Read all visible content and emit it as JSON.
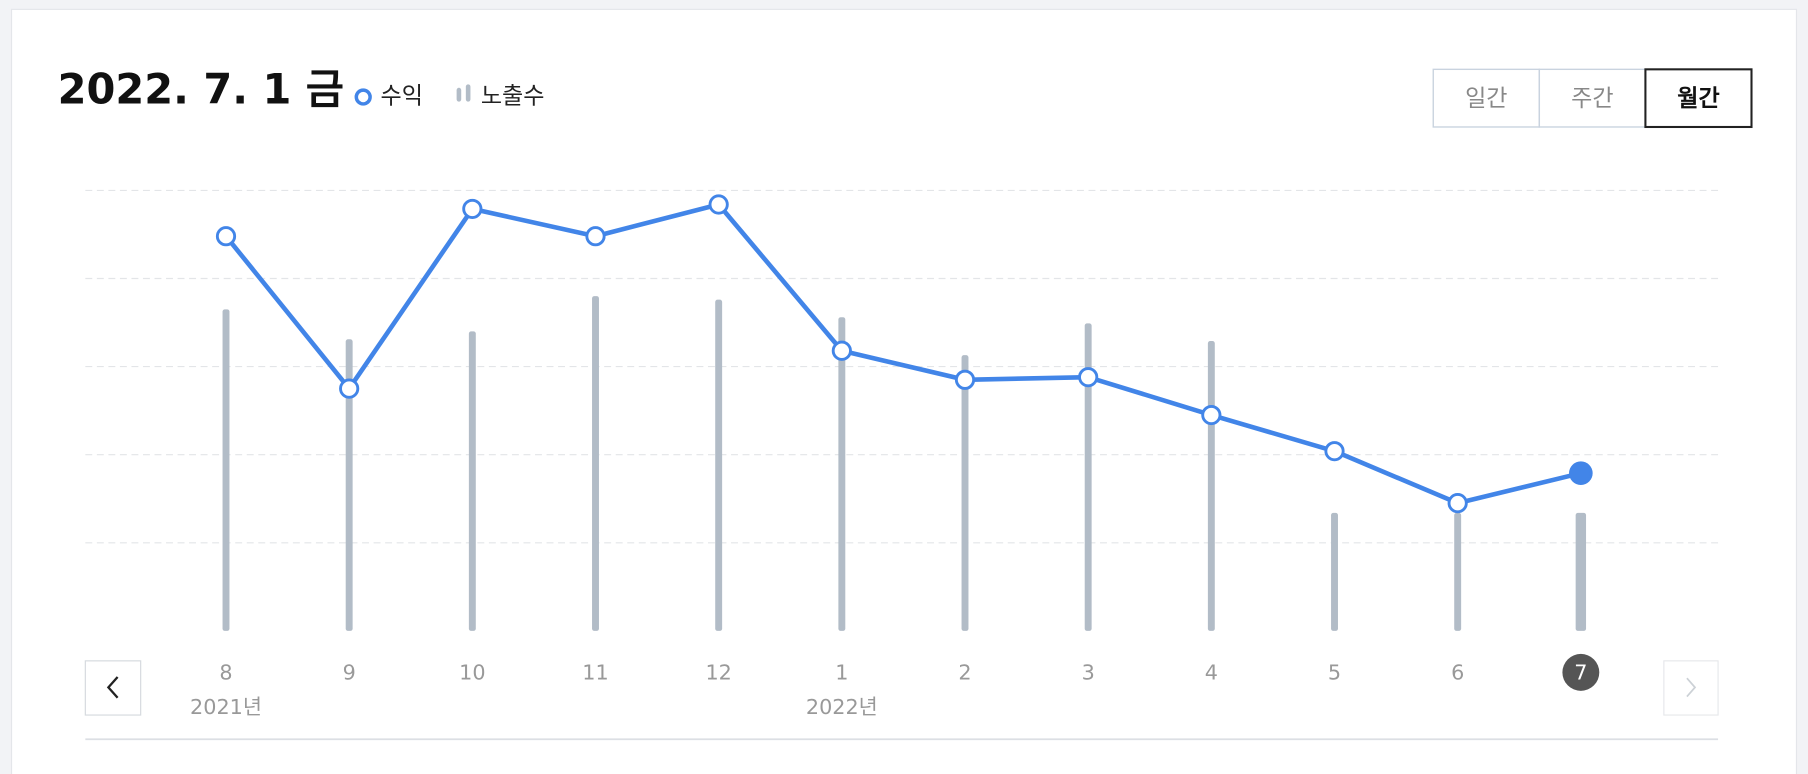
{
  "chart_data": {
    "type": "bar-line",
    "title": "2022. 7. 1 금",
    "categories": [
      "8",
      "9",
      "10",
      "11",
      "12",
      "1",
      "2",
      "3",
      "4",
      "5",
      "6",
      "7"
    ],
    "period_labels": [
      "2021년",
      null,
      null,
      null,
      null,
      "2022년",
      null,
      null,
      null,
      null,
      null,
      null
    ],
    "series": [
      {
        "name": "수익",
        "type": "line",
        "color": "#4285e8",
        "values": [
          4.48,
          2.75,
          4.79,
          4.48,
          4.84,
          3.18,
          2.85,
          2.88,
          2.45,
          2.04,
          1.45,
          1.79
        ]
      },
      {
        "name": "노출수",
        "type": "bar",
        "color": "#b2bcc7",
        "values": [
          3.65,
          3.31,
          3.4,
          3.8,
          3.76,
          3.56,
          3.13,
          3.49,
          3.29,
          1.34,
          1.34,
          1.34
        ]
      }
    ],
    "ylim": [
      0,
      5
    ],
    "yticks": [
      1,
      2,
      3,
      4,
      5
    ],
    "grid": true
  },
  "period_buttons": {
    "labels": [
      "일간",
      "주간",
      "월간"
    ],
    "selected": 2
  }
}
